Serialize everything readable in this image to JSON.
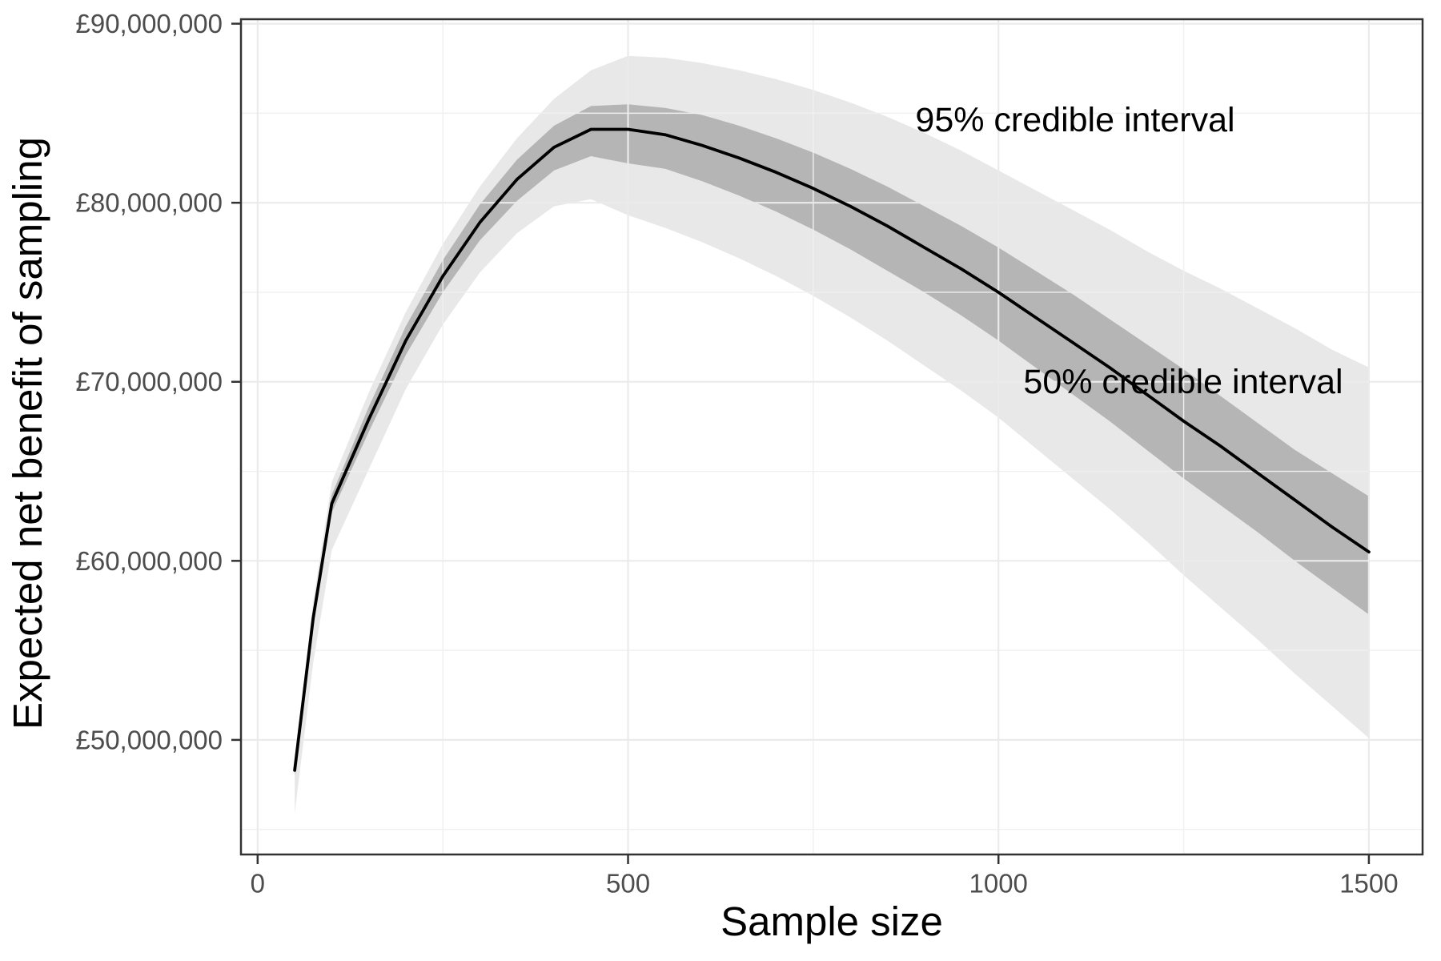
{
  "figure": {
    "background": "#ffffff",
    "style": {
      "ribbon95_fill": "#e8e8e8",
      "ribbon50_fill": "#b5b5b5",
      "line_color": "#000000",
      "grid_major_color": "#ebebeb",
      "grid_minor_color": "#f0f0f0",
      "panel_border_color": "#333333",
      "tick_mark_color": "#333333",
      "tick_label_color": "#4d4d4d",
      "text_color": "#000000"
    }
  },
  "chart_data": {
    "type": "line",
    "title": "",
    "xlabel": "Sample size",
    "ylabel": "Expected net benefit of sampling",
    "y_unit": "GBP millions",
    "grid": "on",
    "legend": "none",
    "xlim": [
      -22.5,
      1572.5
    ],
    "ylim": [
      43.6,
      90.25
    ],
    "x_ticks": {
      "values": [
        0,
        500,
        1000,
        1500
      ],
      "labels": [
        "0",
        "500",
        "1000",
        "1500"
      ],
      "minor": [
        250,
        750,
        1250
      ]
    },
    "y_ticks": {
      "values": [
        50,
        60,
        70,
        80,
        90
      ],
      "labels": [
        "£50,000,000",
        "£60,000,000",
        "£70,000,000",
        "£80,000,000",
        "£90,000,000"
      ],
      "minor": [
        45,
        55,
        65,
        75,
        85
      ]
    },
    "x": [
      50,
      75,
      100,
      150,
      200,
      250,
      300,
      350,
      400,
      450,
      500,
      550,
      600,
      650,
      700,
      750,
      800,
      850,
      900,
      950,
      1000,
      1050,
      1100,
      1150,
      1200,
      1250,
      1300,
      1350,
      1400,
      1450,
      1500
    ],
    "series": [
      {
        "name": "Expected net benefit of sampling (mean)",
        "role": "mean",
        "values": [
          48.3,
          56.8,
          63.2,
          67.9,
          72.3,
          75.9,
          78.9,
          81.3,
          83.1,
          84.1,
          84.1,
          83.8,
          83.2,
          82.5,
          81.7,
          80.8,
          79.8,
          78.7,
          77.5,
          76.3,
          75.0,
          73.6,
          72.2,
          70.8,
          69.3,
          67.8,
          66.4,
          64.9,
          63.4,
          61.9,
          60.5
        ]
      },
      {
        "name": "50% credible interval lower",
        "role": "ci50_lower",
        "values": [
          48.0,
          56.4,
          62.7,
          67.2,
          71.5,
          75.0,
          77.9,
          80.1,
          81.8,
          82.6,
          82.2,
          81.9,
          81.2,
          80.4,
          79.5,
          78.5,
          77.4,
          76.2,
          75.0,
          73.7,
          72.3,
          70.8,
          69.3,
          67.8,
          66.2,
          64.6,
          63.1,
          61.6,
          60.0,
          58.5,
          57.0
        ]
      },
      {
        "name": "50% credible interval upper",
        "role": "ci50_upper",
        "values": [
          48.6,
          57.2,
          63.7,
          68.6,
          73.1,
          76.8,
          79.9,
          82.4,
          84.3,
          85.4,
          85.5,
          85.3,
          84.9,
          84.3,
          83.6,
          82.8,
          81.9,
          80.9,
          79.8,
          78.7,
          77.5,
          76.2,
          74.9,
          73.5,
          72.1,
          70.7,
          69.2,
          67.7,
          66.2,
          64.9,
          63.6
        ]
      },
      {
        "name": "95% credible interval lower",
        "role": "ci95_lower",
        "values": [
          45.9,
          54.3,
          60.6,
          65.1,
          69.6,
          73.2,
          76.1,
          78.3,
          79.8,
          80.2,
          79.3,
          78.6,
          77.8,
          76.9,
          75.9,
          74.8,
          73.6,
          72.3,
          70.9,
          69.5,
          68.0,
          66.3,
          64.6,
          62.9,
          61.1,
          59.2,
          57.4,
          55.6,
          53.7,
          51.9,
          50.1
        ]
      },
      {
        "name": "95% credible interval upper",
        "role": "ci95_upper",
        "values": [
          48.8,
          57.7,
          64.4,
          69.4,
          73.9,
          77.7,
          80.9,
          83.6,
          85.8,
          87.4,
          88.2,
          88.1,
          87.8,
          87.4,
          86.9,
          86.3,
          85.6,
          84.8,
          83.9,
          82.9,
          81.8,
          80.7,
          79.6,
          78.5,
          77.3,
          76.2,
          75.2,
          74.1,
          73.0,
          71.8,
          70.8
        ]
      }
    ],
    "annotations": [
      {
        "text": "95% credible interval",
        "x": 1103,
        "y": 84.6
      },
      {
        "text": "50% credible interval",
        "x": 1249,
        "y": 70.0
      }
    ]
  }
}
